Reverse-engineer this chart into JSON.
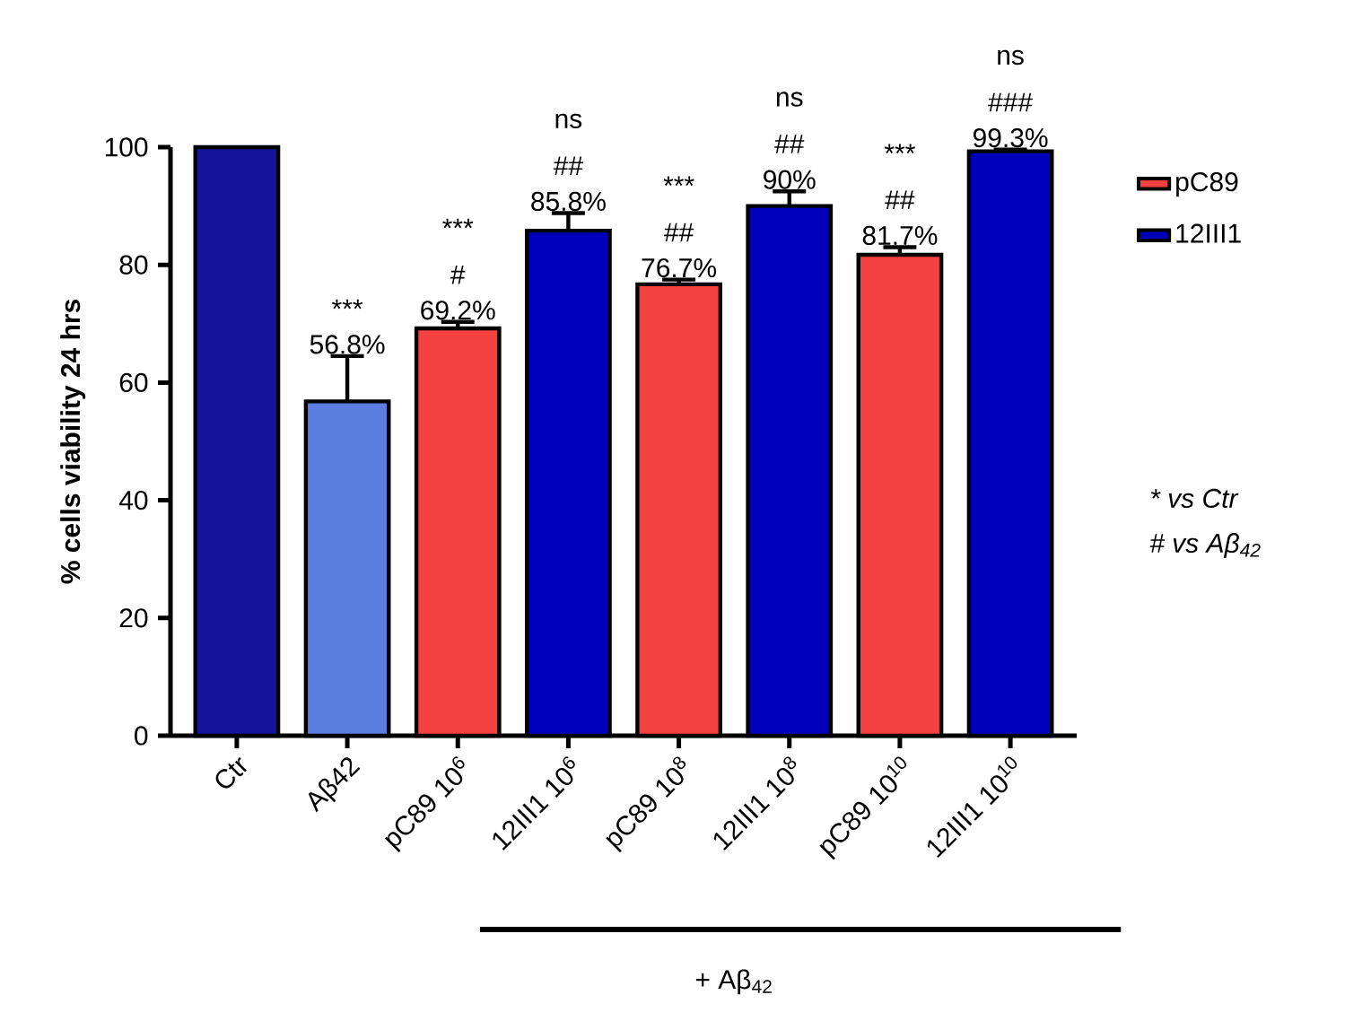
{
  "chart_data": {
    "type": "bar",
    "ylabel": "% cells viability 24  hrs",
    "categories": [
      "Ctr",
      "Aβ42",
      "pC89 10$^{6}$",
      "12III1 10$^{6}$",
      "pC89 10$^{8}$",
      "12III1 10$^{8}$",
      "pC89 10$^{10}$",
      "12III1 10$^{10}$"
    ],
    "series": [
      {
        "colors": [
          "#14149e",
          "#5a7fe0",
          null,
          null,
          null,
          null,
          null,
          null
        ],
        "values": [
          100,
          56.8,
          null,
          null,
          null,
          null,
          null,
          null
        ],
        "errors": [
          null,
          [
            56.8,
            64.5
          ],
          null,
          null,
          null,
          null,
          null,
          null
        ],
        "value_labels": [
          null,
          "56.8%",
          null,
          null,
          null,
          null,
          null,
          null
        ]
      },
      {
        "name": "pC89",
        "color": "#f44242",
        "values": [
          null,
          null,
          69.2,
          null,
          76.7,
          null,
          81.7,
          null
        ],
        "errors": [
          null,
          null,
          [
            69.2,
            70.3
          ],
          null,
          [
            76.7,
            77.5
          ],
          null,
          [
            81.7,
            83.0
          ],
          null
        ],
        "value_labels": [
          null,
          null,
          "69.2%",
          null,
          "76.7%",
          null,
          "81.7%",
          null
        ]
      },
      {
        "name": "12III1",
        "color": "#0000bb",
        "values": [
          null,
          null,
          null,
          85.8,
          null,
          90,
          null,
          99.3
        ],
        "errors": [
          null,
          null,
          null,
          [
            85.8,
            88.8
          ],
          null,
          [
            90,
            92.5
          ],
          null,
          [
            99.3,
            99.6
          ]
        ],
        "value_labels": [
          null,
          null,
          null,
          "85.8%",
          null,
          "90%",
          null,
          "99.3%"
        ]
      }
    ],
    "ylim": [
      0,
      100
    ],
    "yticks": [
      0,
      20,
      40,
      60,
      80,
      100
    ],
    "legend": "right",
    "annotations": [
      "***",
      "#",
      "***",
      "##",
      "ns",
      "##",
      "***",
      "##",
      "ns",
      "##",
      "***",
      "###",
      "ns",
      "* vs Ctr",
      "# vs Aβ$_{42}$",
      "+ Aβ$_{42}$"
    ]
  }
}
